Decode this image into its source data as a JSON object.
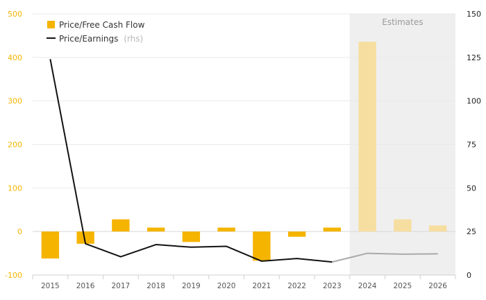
{
  "chart_data": {
    "type": "bar+line",
    "categories": [
      "2015",
      "2016",
      "2017",
      "2018",
      "2019",
      "2020",
      "2021",
      "2022",
      "2023",
      "2024",
      "2025",
      "2026"
    ],
    "estimates_start_index": 9,
    "estimates_label": "Estimates",
    "series": [
      {
        "name": "Price/Free Cash Flow",
        "type": "bar",
        "axis": "left",
        "color": "#f5b400",
        "estimate_color": "#f6dea0",
        "values": [
          -62,
          -28,
          28,
          9,
          -24,
          9,
          -67,
          -12,
          9,
          436,
          28,
          14
        ]
      },
      {
        "name": "Price/Earnings",
        "type": "line",
        "axis": "right",
        "color": "#111111",
        "estimate_color": "#a9a9a9",
        "values": [
          124,
          18,
          10.5,
          17.5,
          16,
          16.5,
          8,
          9.5,
          7.5,
          12.5,
          12,
          12.2
        ]
      }
    ],
    "legend_note": "(rhs)",
    "left_axis": {
      "min": -100,
      "max": 500,
      "ticks": [
        -100,
        0,
        100,
        200,
        300,
        400,
        500
      ],
      "color": "#f5b400"
    },
    "right_axis": {
      "min": 0,
      "max": 150,
      "ticks": [
        0,
        25,
        50,
        75,
        100,
        125,
        150
      ],
      "color": "#222222"
    },
    "grid": true,
    "legend_position": "top-left"
  }
}
